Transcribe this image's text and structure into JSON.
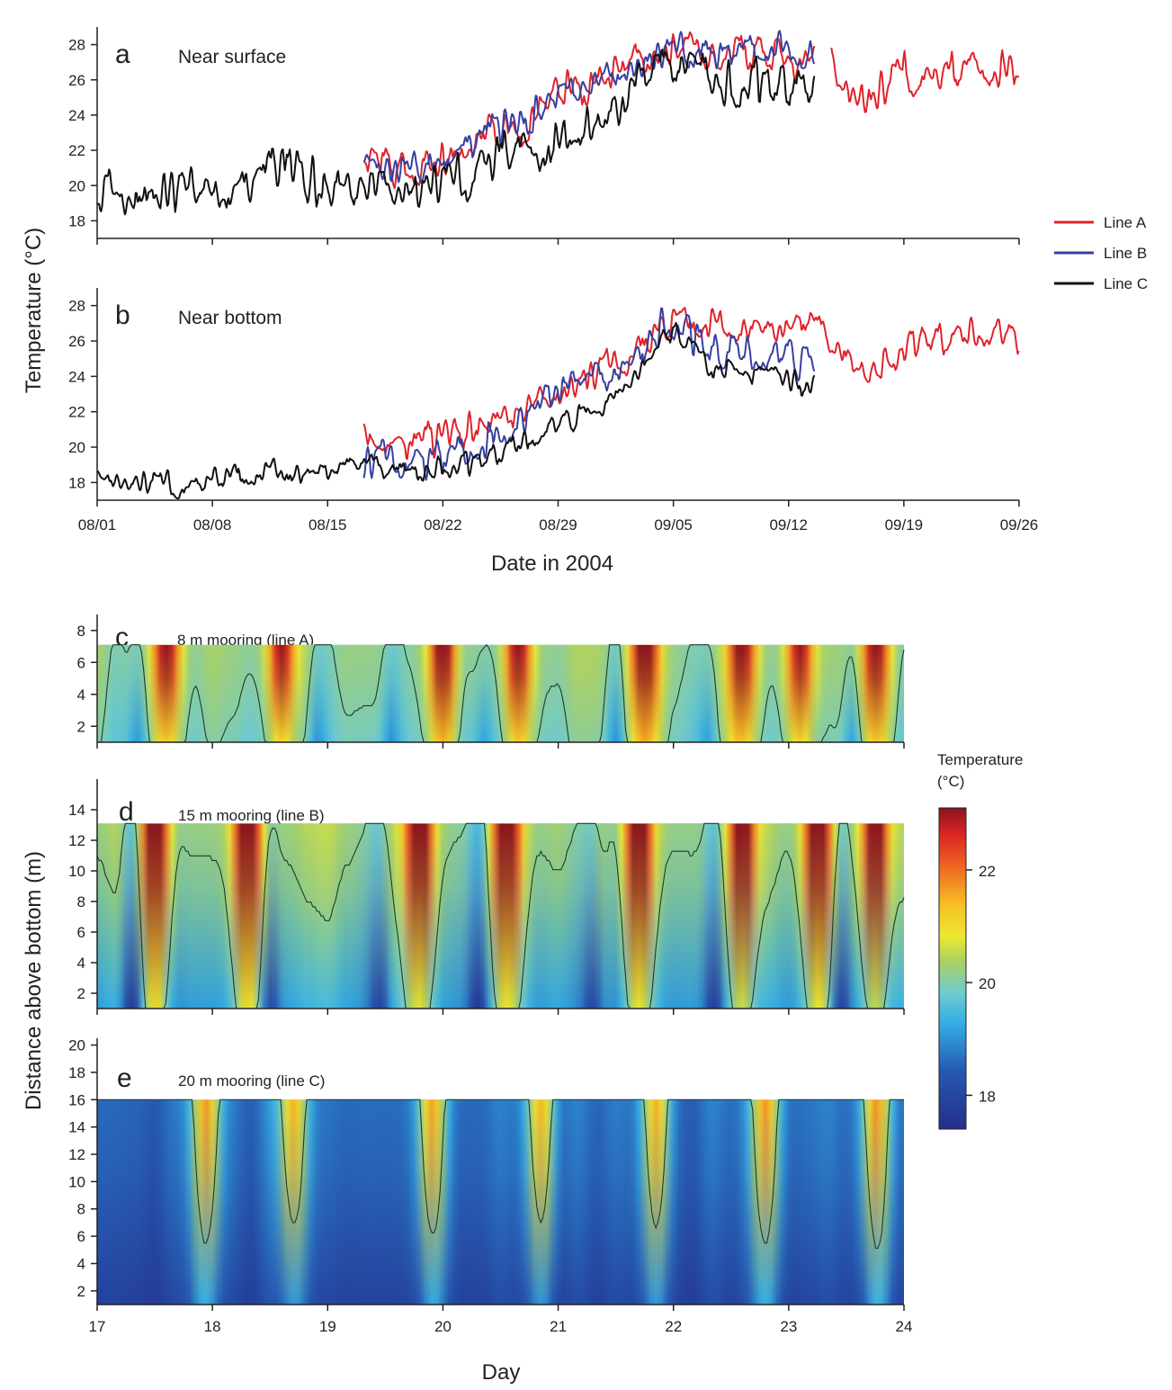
{
  "colors": {
    "lineA": "#e0232b",
    "lineB": "#3540a0",
    "lineC": "#111111",
    "axis": "#222222",
    "contour": "#1f3a2a"
  },
  "chart_data": [
    {
      "type": "line",
      "panel": "a",
      "title": "Near surface",
      "ylabel": "Temperature (°C)",
      "xlabel": "Date in 2004",
      "ylim": [
        17,
        29
      ],
      "yticks": [
        18,
        20,
        22,
        24,
        26,
        28
      ],
      "xlim": [
        0,
        56
      ],
      "xticks": [
        0,
        7,
        14,
        21,
        28,
        35,
        42,
        49,
        56
      ],
      "xticklabels": [
        "08/01",
        "08/08",
        "08/15",
        "08/22",
        "08/29",
        "09/05",
        "09/12",
        "09/19",
        "09/26"
      ],
      "series": [
        {
          "name": "Line A",
          "x": [
            16.2,
            17,
            18,
            19,
            20,
            21,
            22,
            23,
            24,
            25,
            26,
            27,
            28,
            29,
            30,
            31,
            32,
            33,
            34,
            35,
            36,
            37,
            38,
            39,
            40,
            41,
            42,
            43,
            43.6
          ],
          "values": [
            21.5,
            21.0,
            20.8,
            20.9,
            21.2,
            21.6,
            22.0,
            22.7,
            23.6,
            23.5,
            23.2,
            24.4,
            25.5,
            25.6,
            25.9,
            26.1,
            26.6,
            26.9,
            27.2,
            27.5,
            27.7,
            27.6,
            27.4,
            27.6,
            27.8,
            27.5,
            27.3,
            27.2,
            27.3
          ]
        },
        {
          "name": "Line A",
          "x": [
            44.6,
            45,
            46,
            47,
            48,
            48.6,
            49,
            50,
            51,
            52,
            53,
            54,
            55,
            56
          ],
          "values": [
            27.0,
            26.2,
            25.6,
            25.0,
            25.3,
            26.2,
            26.4,
            26.2,
            26.1,
            26.3,
            26.7,
            26.9,
            26.6,
            26.2
          ]
        },
        {
          "name": "Line B",
          "x": [
            16.2,
            17,
            18,
            19,
            20,
            21,
            22,
            23,
            24,
            25,
            26,
            27,
            28,
            29,
            30,
            31,
            32,
            33,
            34,
            35,
            36,
            37,
            38,
            39,
            40,
            41,
            42,
            43,
            43.6
          ],
          "values": [
            21.4,
            21.0,
            20.9,
            21.0,
            21.3,
            21.8,
            22.0,
            22.6,
            23.3,
            23.2,
            23.4,
            24.6,
            25.3,
            25.5,
            25.8,
            26.2,
            26.7,
            27.0,
            27.3,
            27.5,
            27.8,
            27.7,
            27.2,
            27.6,
            27.9,
            28.1,
            27.5,
            27.2,
            27.3
          ]
        },
        {
          "name": "Line C",
          "x": [
            0,
            1,
            2,
            3,
            4,
            5,
            6,
            7,
            8,
            9,
            10,
            11,
            12,
            13,
            14,
            15,
            16,
            17,
            18,
            19,
            20,
            21,
            22,
            23,
            24,
            25,
            26,
            27,
            28,
            29,
            30,
            31,
            32,
            33,
            34,
            35,
            36,
            37,
            38,
            39,
            40,
            41,
            42,
            43,
            43.6
          ],
          "values": [
            19.6,
            20.0,
            19.2,
            19.1,
            19.5,
            19.9,
            20.2,
            20.3,
            19.7,
            20.1,
            20.6,
            20.8,
            21.0,
            20.3,
            19.6,
            20.2,
            20.0,
            20.1,
            20.0,
            20.3,
            20.0,
            19.9,
            20.4,
            21.0,
            21.5,
            21.8,
            22.0,
            22.4,
            22.5,
            22.8,
            23.3,
            23.5,
            24.3,
            25.5,
            26.1,
            26.6,
            27.2,
            27.0,
            25.8,
            25.5,
            26.0,
            25.5,
            25.8,
            25.5,
            25.4
          ]
        }
      ]
    },
    {
      "type": "line",
      "panel": "b",
      "title": "Near bottom",
      "xlabel": "Date in 2004",
      "ylim": [
        17,
        29
      ],
      "yticks": [
        18,
        20,
        22,
        24,
        26,
        28
      ],
      "xlim": [
        0,
        56
      ],
      "xticks": [
        0,
        7,
        14,
        21,
        28,
        35,
        42,
        49,
        56
      ],
      "xticklabels": [
        "08/01",
        "08/08",
        "08/15",
        "08/22",
        "08/29",
        "09/05",
        "09/12",
        "09/19",
        "09/26"
      ],
      "series": [
        {
          "name": "Line A",
          "x": [
            16.2,
            17,
            18,
            19,
            20,
            21,
            22,
            23,
            24,
            25,
            26,
            27,
            28,
            29,
            30,
            31,
            32,
            33,
            34,
            35,
            36,
            37,
            38,
            39,
            40,
            41,
            42,
            43,
            44,
            45,
            46,
            47,
            48,
            49,
            50,
            51,
            52,
            53,
            54,
            55,
            56
          ],
          "values": [
            21.2,
            20.5,
            20.2,
            20.2,
            20.4,
            20.5,
            20.8,
            21.2,
            21.5,
            21.8,
            22.3,
            22.7,
            23.2,
            23.7,
            24.0,
            24.5,
            25.0,
            25.7,
            26.3,
            27.0,
            27.4,
            27.2,
            26.7,
            26.5,
            26.7,
            26.4,
            26.3,
            26.6,
            26.4,
            25.6,
            24.6,
            24.5,
            25.0,
            25.5,
            26.0,
            26.2,
            26.1,
            26.4,
            26.6,
            26.5,
            26.0
          ]
        },
        {
          "name": "Line B",
          "x": [
            16.2,
            17,
            18,
            19,
            20,
            21,
            22,
            23,
            24,
            25,
            26,
            27,
            28,
            29,
            30,
            31,
            32,
            33,
            34,
            35,
            36,
            37,
            38,
            39,
            40,
            41,
            42,
            43,
            43.6
          ],
          "values": [
            18.8,
            19.2,
            19.4,
            19.3,
            19.2,
            19.4,
            19.7,
            20.2,
            20.5,
            20.8,
            21.6,
            22.6,
            22.8,
            23.2,
            23.5,
            23.8,
            24.5,
            25.6,
            26.8,
            27.0,
            26.5,
            25.5,
            25.2,
            25.6,
            25.3,
            25.0,
            25.4,
            24.7,
            24.8
          ]
        },
        {
          "name": "Line C",
          "x": [
            0,
            1,
            2,
            3,
            4,
            5,
            6,
            7,
            8,
            9,
            10,
            11,
            12,
            13,
            14,
            15,
            16,
            17,
            18,
            19,
            20,
            21,
            22,
            23,
            24,
            25,
            26,
            27,
            28,
            29,
            30,
            31,
            32,
            33,
            34,
            35,
            36,
            37,
            38,
            39,
            40,
            41,
            42,
            43,
            43.6
          ],
          "values": [
            18.6,
            18.4,
            18.1,
            17.9,
            17.9,
            17.8,
            17.9,
            18.0,
            18.3,
            18.5,
            18.7,
            18.7,
            18.5,
            18.4,
            18.5,
            18.6,
            18.7,
            18.8,
            18.8,
            18.7,
            18.8,
            18.9,
            19.0,
            19.2,
            19.5,
            19.9,
            20.4,
            21.0,
            21.3,
            21.6,
            22.0,
            22.6,
            23.3,
            24.2,
            25.6,
            26.8,
            26.0,
            24.5,
            24.3,
            24.6,
            24.2,
            24.1,
            24.0,
            23.4,
            23.6
          ]
        }
      ]
    },
    {
      "type": "heatmap",
      "panel": "c",
      "title": "8 m mooring (line A)",
      "ylabel": "Distance above bottom (m)",
      "xlabel": "Day",
      "xlim": [
        17,
        24
      ],
      "ylim": [
        1,
        9
      ],
      "yticks": [
        2,
        4,
        6,
        8
      ],
      "data_top": 7.1,
      "contour_level": 20,
      "warm_events": [
        17.6,
        18.6,
        20.0,
        20.65,
        21.75,
        22.6,
        23.1,
        23.75
      ],
      "cool_events": [
        17.35,
        18.9,
        19.55,
        20.35,
        21.5,
        22.3,
        23.55
      ]
    },
    {
      "type": "heatmap",
      "panel": "d",
      "title": "15 m mooring (line B)",
      "xlabel": "Day",
      "xlim": [
        17,
        24
      ],
      "ylim": [
        1,
        16
      ],
      "yticks": [
        2,
        4,
        6,
        8,
        10,
        12,
        14
      ],
      "data_top": 13.1,
      "contour_level": 20,
      "warm_events": [
        17.5,
        18.3,
        19.8,
        20.55,
        21.7,
        22.6,
        23.25,
        23.75
      ],
      "cool_events": [
        17.3,
        18.5,
        19.45,
        20.3,
        21.3,
        22.35,
        23.45
      ]
    },
    {
      "type": "heatmap",
      "panel": "e",
      "title": "20 m mooring (line C)",
      "xlabel": "Day",
      "xlim": [
        17,
        24
      ],
      "ylim": [
        1,
        20.5
      ],
      "yticks": [
        2,
        4,
        6,
        8,
        10,
        12,
        14,
        16,
        18,
        20
      ],
      "xticks": [
        17,
        18,
        19,
        20,
        21,
        22,
        23,
        24
      ],
      "data_top": 16,
      "contour_level": 20,
      "warm_events": [
        17.95,
        18.7,
        19.9,
        20.85,
        21.85,
        22.8,
        23.75
      ]
    }
  ],
  "legend": {
    "title": "",
    "entries": [
      "Line A",
      "Line B",
      "Line C"
    ]
  },
  "colorbar": {
    "title": "Temperature (°C)",
    "ticks": [
      18,
      20,
      22
    ],
    "range": [
      17.4,
      23.1
    ]
  }
}
